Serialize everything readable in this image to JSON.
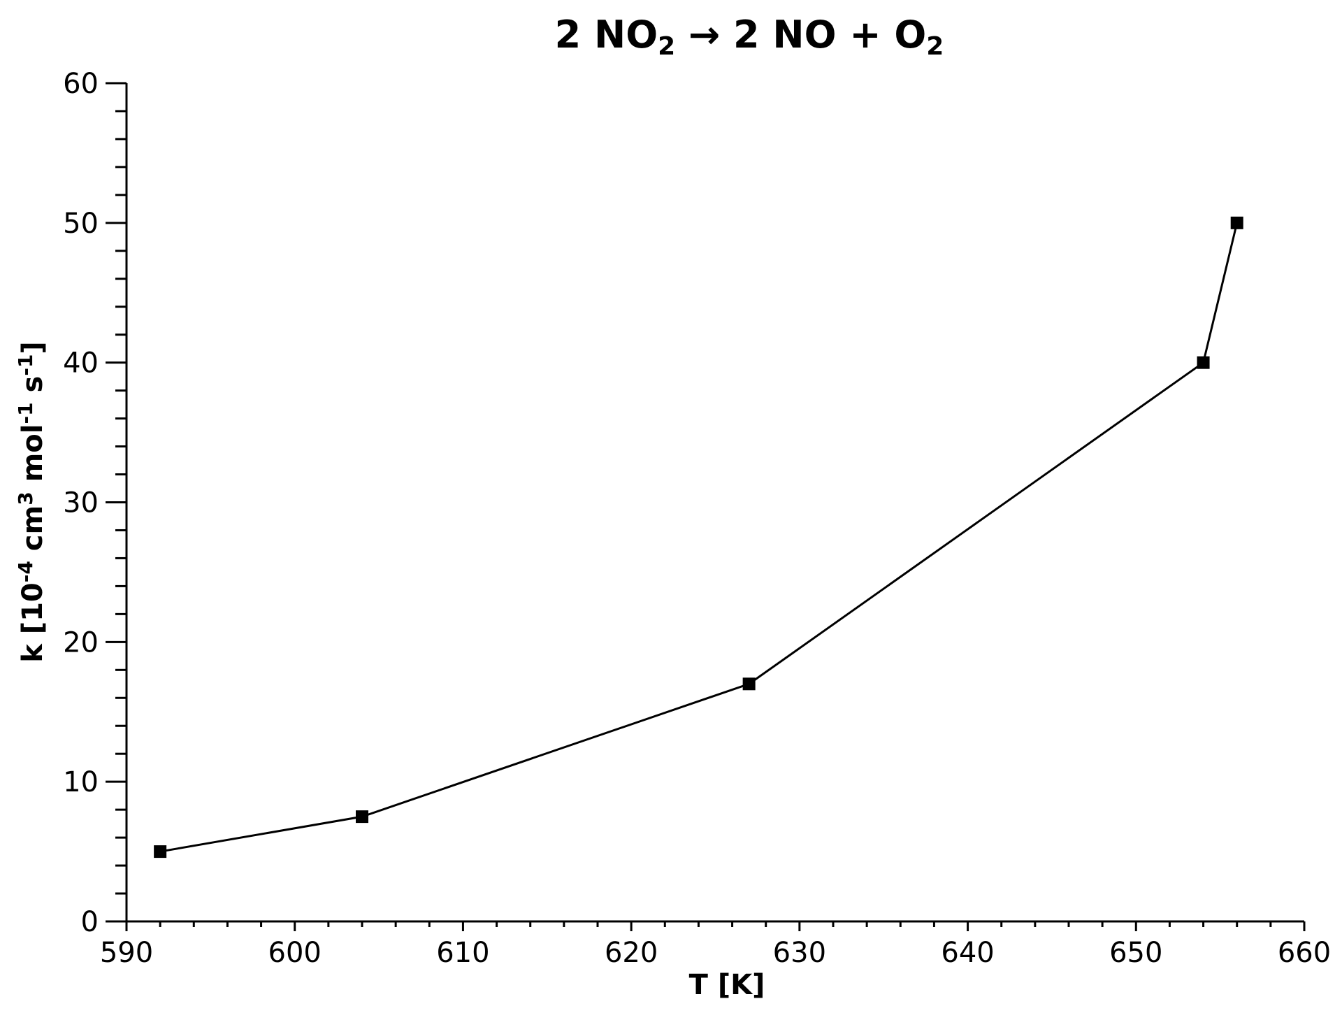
{
  "chart_data": {
    "type": "line",
    "title": {
      "parts": [
        {
          "text": "2 NO",
          "sub": false
        },
        {
          "text": "2",
          "sub": true
        },
        {
          "text": " → 2 NO + O",
          "sub": false
        },
        {
          "text": "2",
          "sub": true
        }
      ]
    },
    "xlabel": "T [K]",
    "ylabel": {
      "parts": [
        {
          "text": "k [10",
          "sup": false
        },
        {
          "text": "-4",
          "sup": true
        },
        {
          "text": " cm",
          "sup": false
        },
        {
          "text": "3",
          "sup": true
        },
        {
          "text": " mol",
          "sup": false
        },
        {
          "text": "-1",
          "sup": true
        },
        {
          "text": " s",
          "sup": false
        },
        {
          "text": "-1",
          "sup": true
        },
        {
          "text": "]",
          "sup": false
        }
      ]
    },
    "xlim": [
      590,
      660
    ],
    "ylim": [
      0,
      60
    ],
    "x_ticks": [
      "590",
      "600",
      "610",
      "620",
      "630",
      "640",
      "650",
      "660"
    ],
    "y_ticks": [
      "0",
      "10",
      "20",
      "30",
      "40",
      "50",
      "60"
    ],
    "x_minor_step": 2,
    "y_minor_step": 2,
    "grid": false,
    "marker": "square",
    "color": "#000000",
    "series": [
      {
        "x": [
          592,
          604,
          627,
          654,
          656
        ],
        "y": [
          5,
          7.5,
          17,
          40,
          50
        ]
      }
    ]
  }
}
